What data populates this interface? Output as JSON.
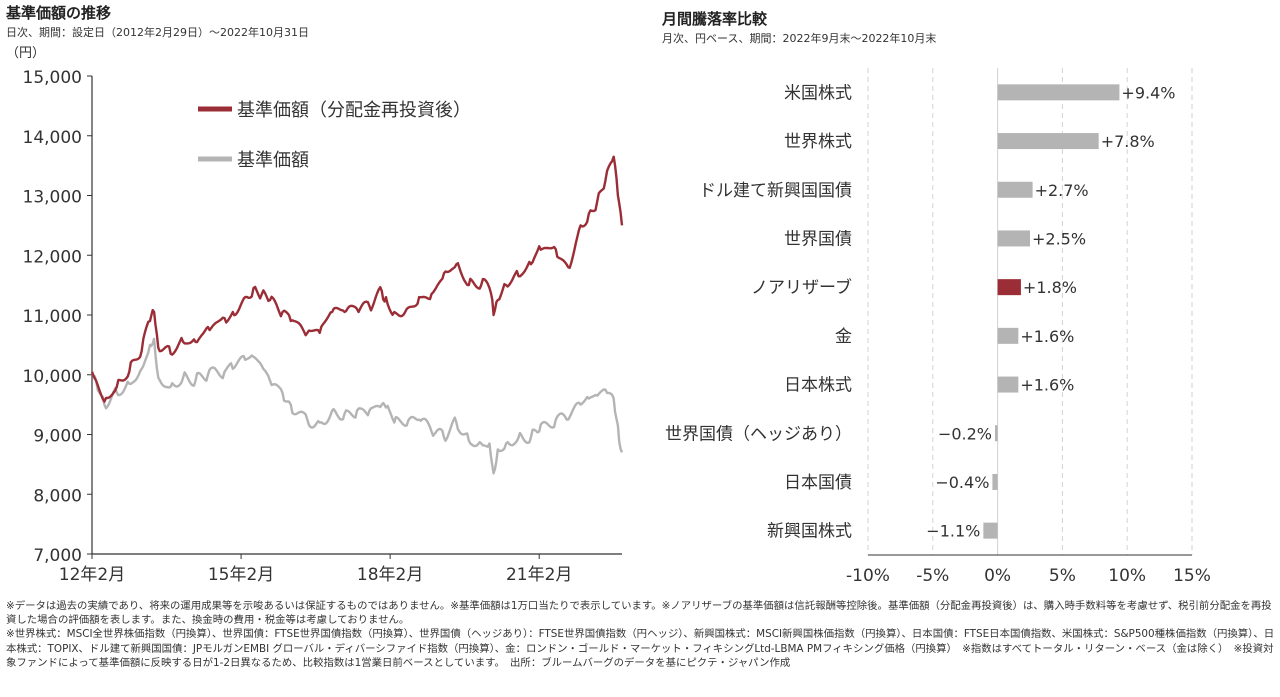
{
  "left_panel": {
    "title": "基準価額の推移",
    "subtitle": "日次、期間：設定日（2012年2月29日）～2022年10月31日",
    "y_unit": "（円）"
  },
  "right_panel": {
    "title": "月間騰落率比較",
    "subtitle": "月次、円ベース、期間：2022年9月末～2022年10月末"
  },
  "notes": [
    "※データは過去の実績であり、将来の運用成果等を示唆あるいは保証するものではありません。※基準価額は1万口当たりで表示しています。※ノアリザーブの基準価額は信託報酬等控除後。基準価額（分配金再投資後）は、購入時手数料等を考慮せず、税引前分配金を再投資した場合の評価額を表します。また、換金時の費用・税金等は考慮しておりません。",
    "※世界株式：MSCI全世界株価指数（円換算）、世界国債：FTSE世界国債指数（円換算）、世界国債（ヘッジあり）：FTSE世界国債指数（円ヘッジ）、新興国株式：MSCI新興国株価指数（円換算）、日本国債：FTSE日本国債指数、米国株式：S&P500種株価指数（円換算）、日本株式：TOPIX、ドル建て新興国国債：JPモルガンEMBI グローバル・ディバーシファイド指数（円換算）、金：ロンドン・ゴールド・マーケット・フィキシングLtd-LBMA PMフィキシング価格（円換算）　※指数はすべてトータル・リターン・ベース（金は除く）　※投資対象ファンドによって基準価額に反映する日が1-2日異なるため、比較指数は1営業日前ベースとしています。　出所：ブルームバーグのデータを基にピクテ・ジャパン作成"
  ],
  "chart_data": [
    {
      "type": "line",
      "ylim": [
        7000,
        15000
      ],
      "yticks": [
        "7,000",
        "8,000",
        "9,000",
        "10,000",
        "11,000",
        "12,000",
        "13,000",
        "14,000",
        "15,000"
      ],
      "xticks": [
        "12年2月",
        "15年2月",
        "18年2月",
        "21年2月"
      ],
      "xtick_positions": [
        "2012-02",
        "2015-02",
        "2018-02",
        "2021-02"
      ],
      "x": [
        "2012-02",
        "2012-03",
        "2012-05",
        "2012-08",
        "2012-11",
        "2013-02",
        "2013-04",
        "2013-05",
        "2013-06",
        "2013-09",
        "2013-12",
        "2014-03",
        "2014-06",
        "2014-10",
        "2014-12",
        "2015-03",
        "2015-05",
        "2015-07",
        "2015-09",
        "2015-12",
        "2016-02",
        "2016-06",
        "2016-09",
        "2016-12",
        "2017-03",
        "2017-06",
        "2017-09",
        "2017-12",
        "2018-01",
        "2018-03",
        "2018-06",
        "2018-09",
        "2018-12",
        "2019-03",
        "2019-06",
        "2019-09",
        "2019-12",
        "2020-02",
        "2020-03",
        "2020-04",
        "2020-06",
        "2020-09",
        "2020-12",
        "2021-02",
        "2021-06",
        "2021-09",
        "2021-12",
        "2022-02",
        "2022-04",
        "2022-06",
        "2022-08",
        "2022-09",
        "2022-10"
      ],
      "series": [
        {
          "name": "基準価額（分配金再投資後）",
          "color": "#9b2d36",
          "values": [
            10050,
            9900,
            9550,
            9800,
            10050,
            10400,
            10900,
            11050,
            10450,
            10350,
            10550,
            10550,
            10800,
            10950,
            11050,
            11300,
            11450,
            11350,
            11250,
            11050,
            10900,
            10700,
            10700,
            11050,
            11050,
            11100,
            11150,
            11400,
            11300,
            11050,
            11100,
            11300,
            11350,
            11700,
            11850,
            11500,
            11500,
            11450,
            11000,
            11250,
            11500,
            11650,
            11850,
            12150,
            12100,
            11800,
            12500,
            12700,
            12900,
            13250,
            13650,
            13000,
            12500
          ]
        },
        {
          "name": "基準価額",
          "color": "#b4b4b4",
          "values": [
            10050,
            9900,
            9500,
            9700,
            9850,
            10100,
            10500,
            10600,
            9950,
            9800,
            9950,
            9900,
            10000,
            10050,
            10100,
            10250,
            10300,
            10150,
            9900,
            9700,
            9500,
            9250,
            9200,
            9400,
            9350,
            9400,
            9400,
            9500,
            9450,
            9200,
            9150,
            9250,
            9050,
            8950,
            9200,
            8900,
            8850,
            8850,
            8350,
            8750,
            8850,
            8950,
            8950,
            9050,
            9250,
            9250,
            9500,
            9600,
            9650,
            9750,
            9600,
            9150,
            8700
          ]
        }
      ]
    },
    {
      "type": "bar",
      "orientation": "horizontal",
      "xlim": [
        -10,
        15
      ],
      "xticks": [
        "-10%",
        "-5%",
        "0%",
        "5%",
        "10%",
        "15%"
      ],
      "xtick_values": [
        -10,
        -5,
        0,
        5,
        10,
        15
      ],
      "categories": [
        "米国株式",
        "世界株式",
        "ドル建て新興国国債",
        "世界国債",
        "ノアリザーブ",
        "金",
        "日本株式",
        "世界国債（ヘッジあり）",
        "日本国債",
        "新興国株式"
      ],
      "values": [
        9.4,
        7.8,
        2.7,
        2.5,
        1.8,
        1.6,
        1.6,
        -0.2,
        -0.4,
        -1.1
      ],
      "labels": [
        "+9.4%",
        "+7.8%",
        "+2.7%",
        "+2.5%",
        "+1.8%",
        "+1.6%",
        "+1.6%",
        "−0.2%",
        "−0.4%",
        "−1.1%"
      ],
      "colors": [
        "#b4b4b4",
        "#b4b4b4",
        "#b4b4b4",
        "#b4b4b4",
        "#9b2d36",
        "#b4b4b4",
        "#b4b4b4",
        "#b4b4b4",
        "#b4b4b4",
        "#b4b4b4"
      ]
    }
  ]
}
